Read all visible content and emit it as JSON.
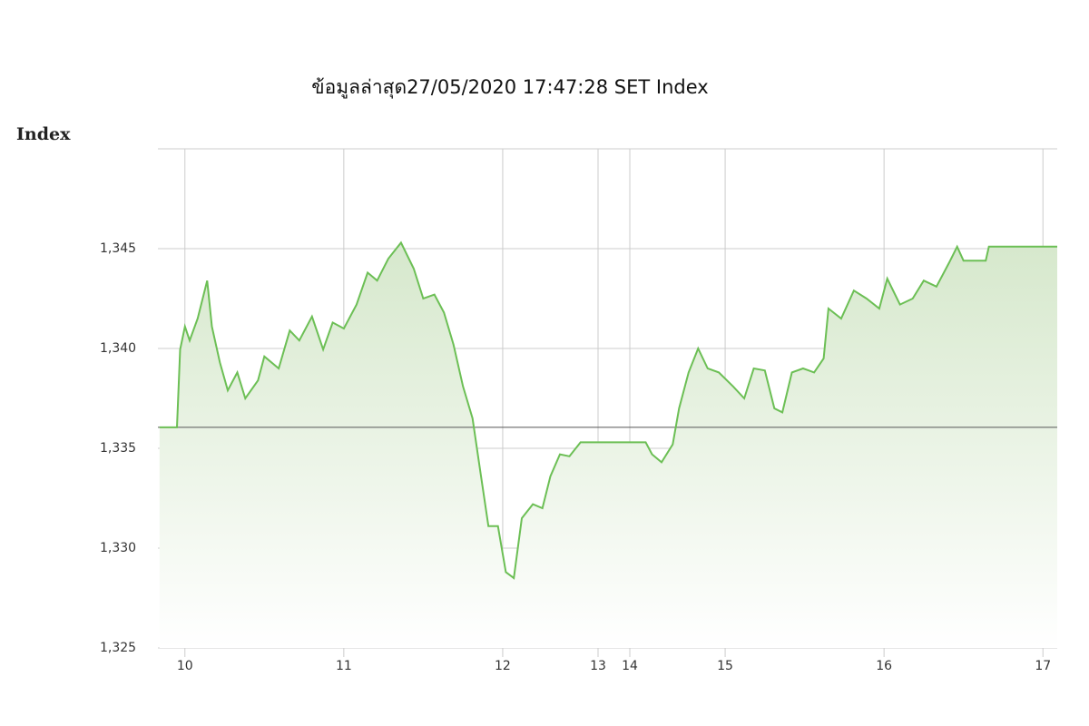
{
  "chart_data": {
    "type": "line",
    "title": "ข้อมูลล่าสุด27/05/2020 17:47:28  SET Index",
    "y_label": "Index",
    "x": [
      9.84,
      9.95,
      9.97,
      10.0,
      10.03,
      10.08,
      10.14,
      10.17,
      10.22,
      10.27,
      10.33,
      10.38,
      10.46,
      10.5,
      10.59,
      10.66,
      10.72,
      10.8,
      10.87,
      10.93,
      11.0,
      11.08,
      11.15,
      11.21,
      11.28,
      11.36,
      11.44,
      11.5,
      11.57,
      11.63,
      11.69,
      11.75,
      11.81,
      11.86,
      11.91,
      11.97,
      12.02,
      12.07,
      12.12,
      12.19,
      12.25,
      12.3,
      12.36,
      12.42,
      12.49,
      14.5,
      14.54,
      14.6,
      14.67,
      14.71,
      14.77,
      14.83,
      14.89,
      14.96,
      15.05,
      15.12,
      15.18,
      15.25,
      15.31,
      15.36,
      15.42,
      15.49,
      15.56,
      15.62,
      15.65,
      15.73,
      15.81,
      15.89,
      15.97,
      16.02,
      16.1,
      16.18,
      16.25,
      16.33,
      16.41,
      16.46,
      16.5,
      16.64,
      16.66,
      17.09
    ],
    "series": [
      {
        "name": "SET Index",
        "color": "#6cbf55",
        "values": [
          1336.05,
          1336.05,
          1339.95,
          1341.1,
          1340.4,
          1341.5,
          1343.4,
          1341.1,
          1339.3,
          1337.9,
          1338.8,
          1337.5,
          1338.4,
          1339.6,
          1339.0,
          1340.9,
          1340.4,
          1341.6,
          1339.95,
          1341.3,
          1341.0,
          1342.2,
          1343.8,
          1343.4,
          1344.5,
          1345.3,
          1344.0,
          1342.5,
          1342.7,
          1341.8,
          1340.2,
          1338.1,
          1336.5,
          1333.8,
          1331.1,
          1331.1,
          1328.8,
          1328.5,
          1331.5,
          1332.2,
          1332.0,
          1333.6,
          1334.7,
          1334.6,
          1335.3,
          1335.3,
          1334.7,
          1334.3,
          1335.2,
          1337.0,
          1338.8,
          1340.0,
          1339.0,
          1338.8,
          1338.1,
          1337.5,
          1339.0,
          1338.9,
          1337.0,
          1336.8,
          1338.8,
          1339.0,
          1338.8,
          1339.5,
          1342.0,
          1341.5,
          1342.9,
          1342.5,
          1342.0,
          1343.5,
          1342.2,
          1342.5,
          1343.4,
          1343.1,
          1344.3,
          1345.1,
          1344.4,
          1344.4,
          1345.1,
          1345.1
        ]
      }
    ],
    "reference_line": 1336.05,
    "xlim": [
      9.83,
      17.09
    ],
    "x_break": [
      12.5,
      14.5
    ],
    "xticks": [
      10,
      11,
      12,
      13,
      14,
      15,
      16,
      17
    ],
    "ylim": [
      1325,
      1350
    ],
    "yticks": [
      {
        "value": 1325,
        "label": "1,325"
      },
      {
        "value": 1330,
        "label": "1,330"
      },
      {
        "value": 1335,
        "label": "1,335"
      },
      {
        "value": 1340,
        "label": "1,340"
      },
      {
        "value": 1345,
        "label": "1,345"
      }
    ],
    "grid": true
  }
}
